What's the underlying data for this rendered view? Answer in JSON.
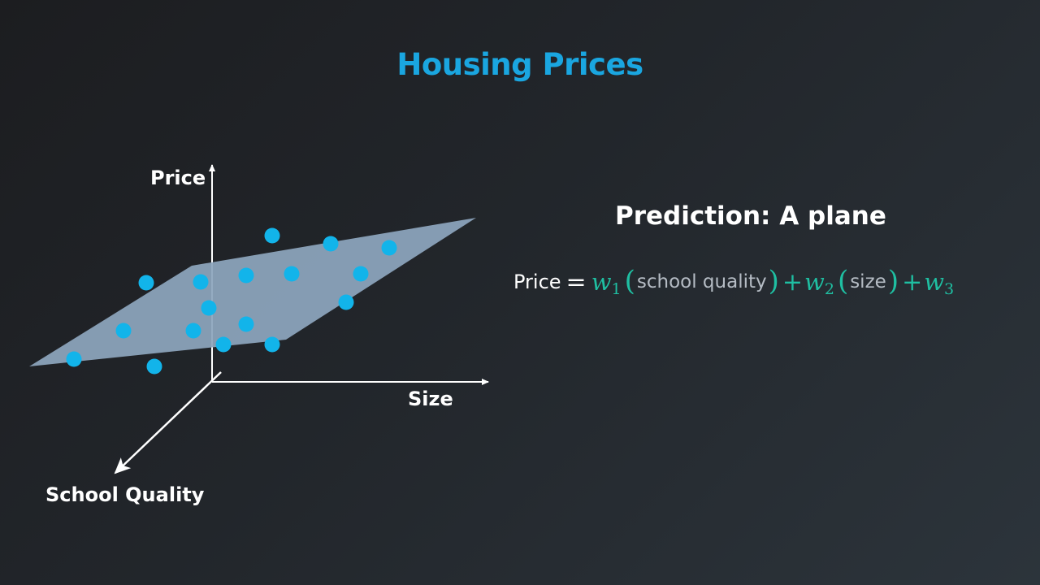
{
  "title": "Housing Prices",
  "axes": {
    "price": "Price",
    "size": "Size",
    "school_quality": "School Quality"
  },
  "prediction": {
    "heading": "Prediction: A plane"
  },
  "formula": {
    "lhs": "Price",
    "equals": "=",
    "w1": "w",
    "w1_sub": "1",
    "open1": "(",
    "term1": "school quality",
    "close1": ")",
    "plus1": "+",
    "w2": "w",
    "w2_sub": "2",
    "open2": "(",
    "term2": "size",
    "close2": ")",
    "plus2": "+",
    "w3": "w",
    "w3_sub": "3"
  },
  "colors": {
    "title": "#1aa6e0",
    "points": "#12b4ea",
    "plane": "#8da6bd",
    "formula_accent": "#1fbfa2",
    "axes": "#ffffff"
  }
}
